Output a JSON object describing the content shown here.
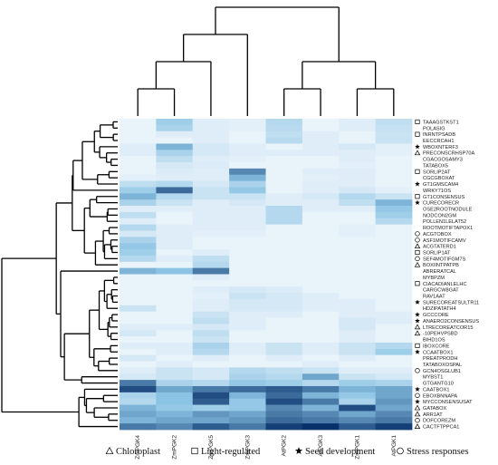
{
  "chart_data": {
    "type": "heatmap",
    "columns": [
      "ZmPGK4",
      "ZmPGK2",
      "ZmPGK5",
      "ZmPGK3",
      "AtPGK2",
      "AtPGK3",
      "ZmPGK1",
      "AtPGK1"
    ],
    "rows": [
      {
        "label": "TAAAGSTKST1",
        "cat": "light"
      },
      {
        "label": "POLASIG",
        "cat": "none"
      },
      {
        "label": "INRNTPSADB",
        "cat": "light"
      },
      {
        "label": "EECCRCAH1",
        "cat": "none"
      },
      {
        "label": "WBOXNTERF3",
        "cat": "seed"
      },
      {
        "label": "PRECONSCRHSP70A",
        "cat": "chloro"
      },
      {
        "label": "CGACGOSAMY3",
        "cat": "none"
      },
      {
        "label": "TATABOX5",
        "cat": "none"
      },
      {
        "label": "SORLIP2AT",
        "cat": "light"
      },
      {
        "label": "CGCGBOXAT",
        "cat": "none"
      },
      {
        "label": "GT1GMSCAM4",
        "cat": "seed"
      },
      {
        "label": "WRKY71OS",
        "cat": "none"
      },
      {
        "label": "GT1CONSENSUS",
        "cat": "light"
      },
      {
        "label": "CURECORECR",
        "cat": "seed"
      },
      {
        "label": "OSE2ROOTNODULE",
        "cat": "none"
      },
      {
        "label": "NODCON2GM",
        "cat": "none"
      },
      {
        "label": "POLLEN1LELAT52",
        "cat": "none"
      },
      {
        "label": "ROOTMOTIFTAPOX1",
        "cat": "none"
      },
      {
        "label": "ACGTOBOX",
        "cat": "stress"
      },
      {
        "label": "ASF1MOTIFCAMV",
        "cat": "stress"
      },
      {
        "label": "ACGTATERD1",
        "cat": "chloro"
      },
      {
        "label": "SORLIP1AT",
        "cat": "light"
      },
      {
        "label": "SEF4MOTIFGM7S",
        "cat": "stress"
      },
      {
        "label": "BOXIINTPATPB",
        "cat": "chloro"
      },
      {
        "label": "ABRERATCAL",
        "cat": "none"
      },
      {
        "label": "MYBPZM",
        "cat": "none"
      },
      {
        "label": "CIACADIANLELHC",
        "cat": "light"
      },
      {
        "label": "CARGCW8GAT",
        "cat": "none"
      },
      {
        "label": "RAV1AAT",
        "cat": "none"
      },
      {
        "label": "SURECOREATSULTR11",
        "cat": "seed"
      },
      {
        "label": "HDZIPATATH4",
        "cat": "none"
      },
      {
        "label": "GCCCORE",
        "cat": "seed"
      },
      {
        "label": "ANAERO2CONSENSUS",
        "cat": "seed"
      },
      {
        "label": "LTRECOREATCOR15",
        "cat": "chloro"
      },
      {
        "label": "-10PEHVPSBD",
        "cat": "chloro"
      },
      {
        "label": "BIHD1OS",
        "cat": "none"
      },
      {
        "label": "IBOXCORE",
        "cat": "light"
      },
      {
        "label": "CCAATBOX1",
        "cat": "seed"
      },
      {
        "label": "PREATPRODH",
        "cat": "none"
      },
      {
        "label": "TATABOXOSPAL",
        "cat": "none"
      },
      {
        "label": "GCN4OSGLUB1",
        "cat": "stress"
      },
      {
        "label": "MYBST1",
        "cat": "none"
      },
      {
        "label": "GTGANTG10",
        "cat": "none"
      },
      {
        "label": "CAATBOX1",
        "cat": "seed"
      },
      {
        "label": "EBOXBNNAPA",
        "cat": "stress"
      },
      {
        "label": "MYCCONSENSUSAT",
        "cat": "seed"
      },
      {
        "label": "GATABOX",
        "cat": "chloro"
      },
      {
        "label": "ARR1AT",
        "cat": "chloro"
      },
      {
        "label": "DOFCOREZM",
        "cat": "stress"
      },
      {
        "label": "CACTFTPPCA1",
        "cat": "chloro"
      }
    ],
    "values": [
      [
        0.05,
        0.4,
        0.1,
        0.08,
        0.3,
        0.05,
        0.1,
        0.25
      ],
      [
        0.05,
        0.35,
        0.1,
        0.08,
        0.28,
        0.05,
        0.1,
        0.22
      ],
      [
        0.05,
        0.1,
        0.1,
        0.05,
        0.25,
        0.1,
        0.05,
        0.2
      ],
      [
        0.05,
        0.05,
        0.1,
        0.05,
        0.28,
        0.1,
        0.05,
        0.2
      ],
      [
        0.1,
        0.55,
        0.15,
        0.1,
        0.05,
        0.1,
        0.15,
        0.08
      ],
      [
        0.1,
        0.35,
        0.15,
        0.1,
        0.1,
        0.1,
        0.1,
        0.08
      ],
      [
        0.05,
        0.25,
        0.1,
        0.08,
        0.05,
        0.05,
        0.1,
        0.05
      ],
      [
        0.05,
        0.15,
        0.12,
        0.05,
        0.05,
        0.05,
        0.08,
        0.05
      ],
      [
        0.05,
        0.12,
        0.1,
        0.7,
        0.05,
        0.1,
        0.1,
        0.05
      ],
      [
        0.08,
        0.1,
        0.1,
        0.55,
        0.05,
        0.08,
        0.1,
        0.05
      ],
      [
        0.25,
        0.3,
        0.15,
        0.35,
        0.05,
        0.1,
        0.1,
        0.05
      ],
      [
        0.4,
        0.8,
        0.2,
        0.45,
        0.05,
        0.1,
        0.15,
        0.08
      ],
      [
        0.55,
        0.3,
        0.2,
        0.2,
        0.1,
        0.15,
        0.3,
        0.2
      ],
      [
        0.35,
        0.2,
        0.1,
        0.15,
        0.1,
        0.1,
        0.25,
        0.55
      ],
      [
        0.1,
        0.1,
        0.1,
        0.1,
        0.3,
        0.1,
        0.1,
        0.45
      ],
      [
        0.25,
        0.05,
        0.1,
        0.1,
        0.3,
        0.05,
        0.05,
        0.4
      ],
      [
        0.1,
        0.05,
        0.1,
        0.1,
        0.3,
        0.05,
        0.05,
        0.3
      ],
      [
        0.3,
        0.1,
        0.1,
        0.1,
        0.05,
        0.05,
        0.08,
        0.05
      ],
      [
        0.15,
        0.1,
        0.08,
        0.08,
        0.05,
        0.05,
        0.08,
        0.05
      ],
      [
        0.35,
        0.1,
        0.05,
        0.05,
        0.05,
        0.05,
        0.05,
        0.05
      ],
      [
        0.45,
        0.1,
        0.05,
        0.05,
        0.05,
        0.05,
        0.05,
        0.05
      ],
      [
        0.4,
        0.05,
        0.1,
        0.05,
        0.05,
        0.05,
        0.05,
        0.05
      ],
      [
        0.3,
        0.1,
        0.25,
        0.05,
        0.05,
        0.05,
        0.05,
        0.05
      ],
      [
        0.05,
        0.05,
        0.3,
        0.05,
        0.05,
        0.05,
        0.05,
        0.05
      ],
      [
        0.55,
        0.5,
        0.75,
        0.05,
        0.05,
        0.05,
        0.05,
        0.05
      ],
      [
        0.05,
        0.05,
        0.1,
        0.05,
        0.05,
        0.05,
        0.05,
        0.05
      ],
      [
        0.05,
        0.05,
        0.05,
        0.05,
        0.05,
        0.05,
        0.05,
        0.05
      ],
      [
        0.05,
        0.05,
        0.1,
        0.15,
        0.12,
        0.05,
        0.05,
        0.05
      ],
      [
        0.05,
        0.05,
        0.08,
        0.2,
        0.15,
        0.1,
        0.05,
        0.05
      ],
      [
        0.05,
        0.05,
        0.1,
        0.15,
        0.15,
        0.1,
        0.1,
        0.05
      ],
      [
        0.2,
        0.05,
        0.1,
        0.15,
        0.15,
        0.1,
        0.1,
        0.05
      ],
      [
        0.05,
        0.05,
        0.2,
        0.1,
        0.1,
        0.05,
        0.1,
        0.1
      ],
      [
        0.05,
        0.05,
        0.25,
        0.1,
        0.05,
        0.05,
        0.15,
        0.1
      ],
      [
        0.1,
        0.1,
        0.15,
        0.1,
        0.05,
        0.05,
        0.15,
        0.05
      ],
      [
        0.15,
        0.05,
        0.25,
        0.05,
        0.05,
        0.05,
        0.1,
        0.05
      ],
      [
        0.05,
        0.05,
        0.2,
        0.05,
        0.05,
        0.05,
        0.1,
        0.05
      ],
      [
        0.1,
        0.1,
        0.35,
        0.1,
        0.2,
        0.1,
        0.2,
        0.3
      ],
      [
        0.05,
        0.1,
        0.3,
        0.1,
        0.2,
        0.1,
        0.2,
        0.4
      ],
      [
        0.15,
        0.05,
        0.1,
        0.05,
        0.1,
        0.05,
        0.1,
        0.05
      ],
      [
        0.05,
        0.1,
        0.05,
        0.05,
        0.05,
        0.1,
        0.05,
        0.05
      ],
      [
        0.1,
        0.2,
        0.15,
        0.3,
        0.25,
        0.2,
        0.1,
        0.1
      ],
      [
        0.15,
        0.2,
        0.15,
        0.35,
        0.3,
        0.6,
        0.2,
        0.15
      ],
      [
        0.75,
        0.35,
        0.3,
        0.45,
        0.4,
        0.3,
        0.4,
        0.35
      ],
      [
        0.9,
        0.6,
        0.75,
        0.8,
        0.85,
        0.75,
        0.55,
        0.6
      ],
      [
        0.35,
        0.5,
        0.9,
        0.55,
        0.8,
        0.55,
        0.45,
        0.6
      ],
      [
        0.3,
        0.5,
        0.85,
        0.45,
        0.9,
        0.75,
        0.35,
        0.65
      ],
      [
        0.55,
        0.45,
        0.4,
        0.45,
        0.7,
        0.55,
        0.9,
        0.6
      ],
      [
        0.6,
        0.55,
        0.65,
        0.6,
        0.75,
        0.7,
        0.6,
        0.7
      ],
      [
        0.55,
        0.6,
        0.6,
        0.65,
        0.8,
        0.75,
        0.7,
        0.75
      ],
      [
        0.75,
        0.7,
        0.85,
        0.75,
        0.95,
        1.0,
        0.85,
        0.95
      ]
    ],
    "col_dendrogram": "((((ZmPGK4,ZmPGK2),ZmPGK5),ZmPGK3),((AtPGK2,AtPGK3),(ZmPGK1,AtPGK1)))",
    "legend": [
      {
        "symbol": "triangle",
        "label": "Chloroplast"
      },
      {
        "symbol": "square",
        "label": "Light-regulated"
      },
      {
        "symbol": "star",
        "label": "Seed development"
      },
      {
        "symbol": "circle",
        "label": "Stress responses"
      }
    ],
    "colors": {
      "low": "#f4f8fd",
      "mid": "#8ac3e3",
      "high": "#08306b"
    }
  }
}
